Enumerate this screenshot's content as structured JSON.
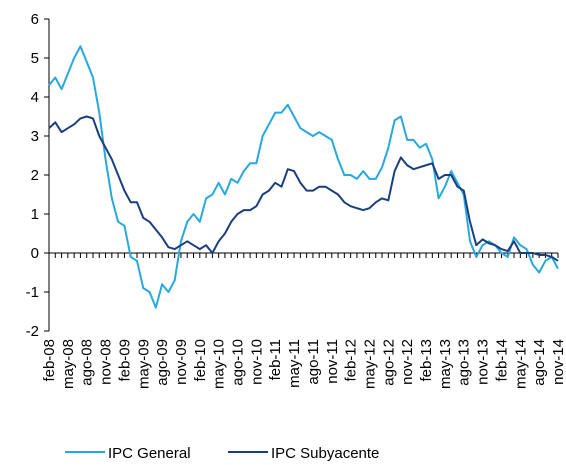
{
  "chart_data": {
    "type": "line",
    "categories": [
      "feb-08",
      null,
      null,
      "may-08",
      null,
      null,
      "ago-08",
      null,
      null,
      "nov-08",
      null,
      null,
      "feb-09",
      null,
      null,
      "may-09",
      null,
      null,
      "ago-09",
      null,
      null,
      "nov-09",
      null,
      null,
      "feb-10",
      null,
      null,
      "may-10",
      null,
      null,
      "ago-10",
      null,
      null,
      "nov-10",
      null,
      null,
      "feb-11",
      null,
      null,
      "may-11",
      null,
      null,
      "ago-11",
      null,
      null,
      "nov-11",
      null,
      null,
      "feb-12",
      null,
      null,
      "may-12",
      null,
      null,
      "ago-12",
      null,
      null,
      "nov-12",
      null,
      null,
      "feb-13",
      null,
      null,
      "may-13",
      null,
      null,
      "ago-13",
      null,
      null,
      "nov-13",
      null,
      null,
      "feb-14",
      null,
      null,
      "may-14",
      null,
      null,
      "ago-14",
      null,
      null,
      "nov-14"
    ],
    "series": [
      {
        "name": "IPC General",
        "color": "#29a8df",
        "values": [
          4.3,
          4.5,
          4.2,
          4.6,
          5.0,
          5.3,
          4.9,
          4.5,
          3.6,
          2.4,
          1.4,
          0.8,
          0.7,
          -0.1,
          -0.2,
          -0.9,
          -1.0,
          -1.4,
          -0.8,
          -1.0,
          -0.7,
          0.3,
          0.8,
          1.0,
          0.8,
          1.4,
          1.5,
          1.8,
          1.5,
          1.9,
          1.8,
          2.1,
          2.3,
          2.3,
          3.0,
          3.3,
          3.6,
          3.6,
          3.8,
          3.5,
          3.2,
          3.1,
          3.0,
          3.1,
          3.0,
          2.9,
          2.4,
          2.0,
          2.0,
          1.9,
          2.1,
          1.9,
          1.9,
          2.2,
          2.7,
          3.4,
          3.5,
          2.9,
          2.9,
          2.7,
          2.8,
          2.4,
          1.4,
          1.7,
          2.1,
          1.8,
          1.5,
          0.3,
          -0.1,
          0.2,
          0.3,
          0.2,
          0.0,
          -0.1,
          0.4,
          0.2,
          0.1,
          -0.3,
          -0.5,
          -0.2,
          -0.1,
          -0.4
        ]
      },
      {
        "name": "IPC Subyacente",
        "color": "#1b3f7c",
        "values": [
          3.2,
          3.35,
          3.1,
          3.2,
          3.3,
          3.45,
          3.5,
          3.45,
          3.0,
          2.7,
          2.4,
          2.0,
          1.6,
          1.3,
          1.3,
          0.9,
          0.8,
          0.6,
          0.4,
          0.15,
          0.1,
          0.2,
          0.3,
          0.2,
          0.1,
          0.2,
          0.0,
          0.3,
          0.5,
          0.8,
          1.0,
          1.1,
          1.1,
          1.2,
          1.5,
          1.6,
          1.8,
          1.7,
          2.15,
          2.1,
          1.8,
          1.6,
          1.6,
          1.7,
          1.7,
          1.6,
          1.5,
          1.3,
          1.2,
          1.15,
          1.1,
          1.15,
          1.3,
          1.4,
          1.35,
          2.1,
          2.45,
          2.25,
          2.15,
          2.2,
          2.25,
          2.3,
          1.9,
          2.0,
          2.0,
          1.7,
          1.6,
          0.8,
          0.2,
          0.35,
          0.25,
          0.2,
          0.1,
          0.05,
          0.3,
          0.0,
          0.0,
          0.0,
          -0.05,
          -0.05,
          -0.1,
          -0.2
        ]
      }
    ],
    "ylim": [
      -2,
      6
    ],
    "yticks": [
      -2,
      -1,
      0,
      1,
      2,
      3,
      4,
      5,
      6
    ],
    "grid": false,
    "legend": "bottom"
  }
}
